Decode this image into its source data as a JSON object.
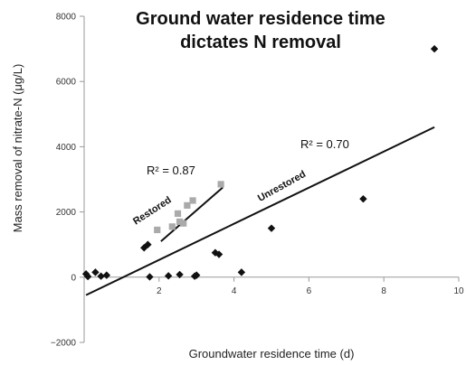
{
  "chart_data": {
    "type": "scatter",
    "title_lines": [
      "Ground water residence time",
      "dictates N removal"
    ],
    "xlabel": "Groundwater residence time (d)",
    "ylabel": "Mass removal of nitrate-N (μg/L)",
    "xlim": [
      0,
      10
    ],
    "ylim": [
      -2000,
      8000
    ],
    "x_ticks": [
      "2",
      "4",
      "6",
      "8",
      "10"
    ],
    "y_ticks": [
      "−2000",
      "0",
      "2000",
      "4000",
      "6000",
      "8000"
    ],
    "grid": false,
    "series": [
      {
        "name": "Unrestored",
        "marker": "diamond",
        "color": "#111111",
        "points": [
          [
            0.05,
            100
          ],
          [
            0.1,
            20
          ],
          [
            0.3,
            150
          ],
          [
            0.45,
            30
          ],
          [
            0.6,
            60
          ],
          [
            1.6,
            900
          ],
          [
            1.7,
            1000
          ],
          [
            1.75,
            10
          ],
          [
            2.25,
            40
          ],
          [
            2.55,
            80
          ],
          [
            2.95,
            30
          ],
          [
            3.0,
            60
          ],
          [
            3.5,
            750
          ],
          [
            3.6,
            700
          ],
          [
            4.2,
            150
          ],
          [
            5.0,
            1500
          ],
          [
            7.45,
            2400
          ],
          [
            9.35,
            7000
          ]
        ],
        "fit": {
          "label": "Unrestored",
          "r2": "R² = 0.70",
          "line": [
            [
              0.05,
              -550
            ],
            [
              9.35,
              4600
            ]
          ]
        }
      },
      {
        "name": "Restored",
        "marker": "square",
        "color": "#aaaaaa",
        "points": [
          [
            1.95,
            1450
          ],
          [
            2.35,
            1550
          ],
          [
            2.5,
            1950
          ],
          [
            2.55,
            1700
          ],
          [
            2.65,
            1650
          ],
          [
            2.75,
            2200
          ],
          [
            2.9,
            2350
          ],
          [
            3.65,
            2850
          ]
        ],
        "fit": {
          "label": "Restored",
          "r2": "R² = 0.87",
          "line": [
            [
              2.05,
              1100
            ],
            [
              3.7,
              2750
            ]
          ]
        }
      }
    ]
  }
}
